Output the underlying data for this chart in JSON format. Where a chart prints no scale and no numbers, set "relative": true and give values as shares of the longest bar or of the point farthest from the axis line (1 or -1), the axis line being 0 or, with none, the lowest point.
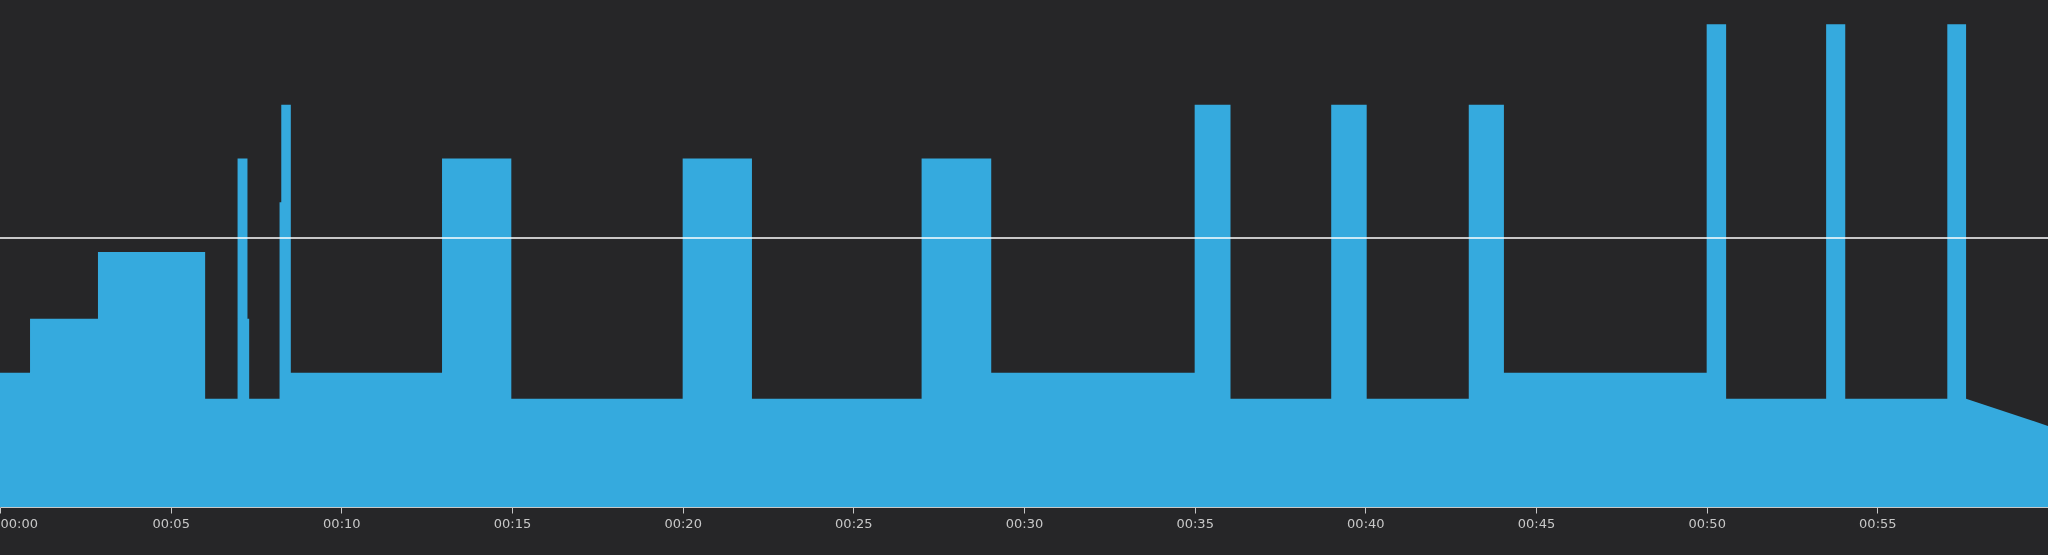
{
  "chart_data": {
    "type": "area",
    "relative": true,
    "grid": false,
    "x": [
      0,
      0.88,
      0.88,
      2.87,
      2.87,
      6.01,
      6.01,
      6.96,
      6.96,
      7.25,
      7.25,
      7.3,
      7.3,
      8.19,
      8.19,
      8.24,
      8.24,
      8.52,
      8.52,
      12.95,
      12.95,
      14.98,
      14.98,
      20,
      20,
      22.03,
      22.03,
      27,
      27,
      29.04,
      29.04,
      35,
      35,
      36.05,
      36.05,
      39,
      39,
      40.04,
      40.04,
      43.03,
      43.03,
      44.06,
      44.06,
      50,
      50,
      50.57,
      50.57,
      53.5,
      53.5,
      54.06,
      54.06,
      57.05,
      57.05,
      57.6,
      57.6,
      60
    ],
    "series": [
      {
        "color": "#35aade",
        "values": [
          0.278,
          0.278,
          0.39,
          0.39,
          0.528,
          0.528,
          0.224,
          0.224,
          0.722,
          0.722,
          0.39,
          0.39,
          0.224,
          0.224,
          0.631,
          0.631,
          0.833,
          0.833,
          0.278,
          0.278,
          0.722,
          0.722,
          0.224,
          0.224,
          0.722,
          0.722,
          0.224,
          0.224,
          0.722,
          0.722,
          0.278,
          0.278,
          0.833,
          0.833,
          0.224,
          0.224,
          0.833,
          0.833,
          0.224,
          0.224,
          0.833,
          0.833,
          0.278,
          0.278,
          1,
          1,
          0.224,
          0.224,
          1,
          1,
          0.224,
          0.224,
          1,
          1,
          0.224,
          0.168
        ]
      }
    ],
    "xlim": [
      0,
      60
    ],
    "xticks": [
      {
        "value": 0,
        "label": "00:00"
      },
      {
        "value": 5,
        "label": "00:05"
      },
      {
        "value": 10,
        "label": "00:10"
      },
      {
        "value": 15,
        "label": "00:15"
      },
      {
        "value": 20,
        "label": "00:20"
      },
      {
        "value": 25,
        "label": "00:25"
      },
      {
        "value": 30,
        "label": "00:30"
      },
      {
        "value": 35,
        "label": "00:35"
      },
      {
        "value": 40,
        "label": "00:40"
      },
      {
        "value": 45,
        "label": "00:45"
      },
      {
        "value": 50,
        "label": "00:50"
      },
      {
        "value": 55,
        "label": "00:55"
      }
    ],
    "ref_lines": [
      {
        "axis": "y",
        "value": 0.557,
        "color": "#ffffff"
      }
    ]
  }
}
